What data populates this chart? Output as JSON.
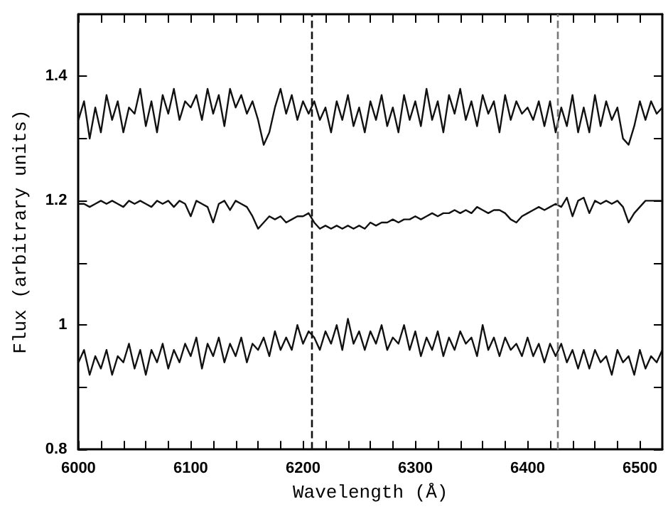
{
  "chart_data": {
    "type": "line",
    "xlabel": "Wavelength (Å)",
    "ylabel": "Flux (arbitrary units)",
    "x": [
      6000,
      6005,
      6010,
      6015,
      6020,
      6025,
      6030,
      6035,
      6040,
      6045,
      6050,
      6055,
      6060,
      6065,
      6070,
      6075,
      6080,
      6085,
      6090,
      6095,
      6100,
      6105,
      6110,
      6115,
      6120,
      6125,
      6130,
      6135,
      6140,
      6145,
      6150,
      6155,
      6160,
      6165,
      6170,
      6175,
      6180,
      6185,
      6190,
      6195,
      6200,
      6205,
      6210,
      6215,
      6220,
      6225,
      6230,
      6235,
      6240,
      6245,
      6250,
      6255,
      6260,
      6265,
      6270,
      6275,
      6280,
      6285,
      6290,
      6295,
      6300,
      6305,
      6310,
      6315,
      6320,
      6325,
      6330,
      6335,
      6340,
      6345,
      6350,
      6355,
      6360,
      6365,
      6370,
      6375,
      6380,
      6385,
      6390,
      6395,
      6400,
      6405,
      6410,
      6415,
      6420,
      6425,
      6430,
      6435,
      6440,
      6445,
      6450,
      6455,
      6460,
      6465,
      6470,
      6475,
      6480,
      6485,
      6490,
      6495,
      6500,
      6505,
      6510,
      6515,
      6520
    ],
    "series": [
      {
        "color": "#111111",
        "values": [
          1.33,
          1.36,
          1.3,
          1.35,
          1.31,
          1.37,
          1.33,
          1.36,
          1.31,
          1.35,
          1.34,
          1.38,
          1.32,
          1.36,
          1.31,
          1.37,
          1.34,
          1.38,
          1.33,
          1.36,
          1.35,
          1.37,
          1.33,
          1.38,
          1.34,
          1.37,
          1.32,
          1.38,
          1.35,
          1.37,
          1.34,
          1.36,
          1.33,
          1.29,
          1.31,
          1.35,
          1.38,
          1.34,
          1.37,
          1.33,
          1.36,
          1.34,
          1.36,
          1.33,
          1.35,
          1.31,
          1.36,
          1.33,
          1.37,
          1.32,
          1.35,
          1.31,
          1.36,
          1.33,
          1.37,
          1.32,
          1.35,
          1.31,
          1.37,
          1.33,
          1.36,
          1.32,
          1.38,
          1.33,
          1.36,
          1.31,
          1.37,
          1.34,
          1.38,
          1.33,
          1.36,
          1.32,
          1.37,
          1.34,
          1.36,
          1.31,
          1.37,
          1.33,
          1.36,
          1.34,
          1.35,
          1.33,
          1.36,
          1.32,
          1.36,
          1.31,
          1.35,
          1.32,
          1.37,
          1.31,
          1.35,
          1.31,
          1.37,
          1.32,
          1.36,
          1.33,
          1.35,
          1.3,
          1.29,
          1.32,
          1.36,
          1.33,
          1.36,
          1.34,
          1.35
        ]
      },
      {
        "color": "#111111",
        "values": [
          1.195,
          1.195,
          1.19,
          1.195,
          1.2,
          1.195,
          1.2,
          1.195,
          1.19,
          1.2,
          1.195,
          1.2,
          1.195,
          1.19,
          1.2,
          1.195,
          1.2,
          1.19,
          1.2,
          1.195,
          1.175,
          1.2,
          1.195,
          1.19,
          1.165,
          1.195,
          1.2,
          1.185,
          1.2,
          1.195,
          1.19,
          1.175,
          1.155,
          1.165,
          1.175,
          1.17,
          1.175,
          1.165,
          1.17,
          1.175,
          1.175,
          1.18,
          1.165,
          1.155,
          1.16,
          1.155,
          1.16,
          1.155,
          1.16,
          1.155,
          1.16,
          1.155,
          1.165,
          1.16,
          1.165,
          1.165,
          1.17,
          1.165,
          1.17,
          1.17,
          1.175,
          1.17,
          1.175,
          1.18,
          1.175,
          1.18,
          1.18,
          1.185,
          1.18,
          1.185,
          1.18,
          1.19,
          1.185,
          1.18,
          1.185,
          1.185,
          1.18,
          1.17,
          1.165,
          1.175,
          1.18,
          1.185,
          1.19,
          1.185,
          1.19,
          1.195,
          1.19,
          1.205,
          1.175,
          1.2,
          1.205,
          1.18,
          1.2,
          1.195,
          1.2,
          1.195,
          1.2,
          1.19,
          1.165,
          1.18,
          1.19,
          1.2,
          1.2,
          1.2,
          1.2
        ]
      },
      {
        "color": "#111111",
        "values": [
          0.94,
          0.96,
          0.92,
          0.95,
          0.93,
          0.96,
          0.92,
          0.95,
          0.94,
          0.97,
          0.93,
          0.96,
          0.92,
          0.96,
          0.94,
          0.97,
          0.93,
          0.96,
          0.94,
          0.97,
          0.95,
          0.98,
          0.93,
          0.97,
          0.95,
          0.98,
          0.94,
          0.97,
          0.95,
          0.98,
          0.94,
          0.97,
          0.96,
          0.98,
          0.95,
          0.99,
          0.96,
          0.98,
          0.96,
          1.0,
          0.97,
          0.99,
          0.98,
          0.96,
          0.99,
          0.97,
          1.0,
          0.96,
          1.01,
          0.97,
          0.99,
          0.96,
          0.99,
          0.97,
          1.0,
          0.96,
          0.98,
          0.97,
          1.0,
          0.96,
          0.99,
          0.95,
          0.98,
          0.96,
          0.99,
          0.95,
          0.98,
          0.96,
          0.99,
          0.97,
          0.98,
          0.95,
          1.0,
          0.96,
          0.98,
          0.95,
          0.98,
          0.96,
          0.97,
          0.95,
          0.98,
          0.95,
          0.97,
          0.94,
          0.97,
          0.95,
          0.97,
          0.94,
          0.96,
          0.93,
          0.96,
          0.93,
          0.96,
          0.94,
          0.95,
          0.92,
          0.96,
          0.94,
          0.95,
          0.92,
          0.96,
          0.93,
          0.95,
          0.94,
          0.96
        ]
      }
    ],
    "xlim": [
      6000,
      6520
    ],
    "xticks": [
      6000,
      {
        "value": 6020,
        "label": null
      },
      {
        "value": 6040,
        "label": null
      },
      {
        "value": 6060,
        "label": null
      },
      {
        "value": 6080,
        "label": null
      },
      6100,
      {
        "value": 6120,
        "label": null
      },
      {
        "value": 6140,
        "label": null
      },
      {
        "value": 6160,
        "label": null
      },
      {
        "value": 6180,
        "label": null
      },
      6200,
      {
        "value": 6220,
        "label": null
      },
      {
        "value": 6240,
        "label": null
      },
      {
        "value": 6260,
        "label": null
      },
      {
        "value": 6280,
        "label": null
      },
      6300,
      {
        "value": 6320,
        "label": null
      },
      {
        "value": 6340,
        "label": null
      },
      {
        "value": 6360,
        "label": null
      },
      {
        "value": 6380,
        "label": null
      },
      6400,
      {
        "value": 6420,
        "label": null
      },
      {
        "value": 6440,
        "label": null
      },
      {
        "value": 6460,
        "label": null
      },
      {
        "value": 6480,
        "label": null
      },
      6500
    ],
    "ylim": [
      0.8,
      1.5
    ],
    "yticks": [
      0.8,
      {
        "value": 0.9,
        "label": null
      },
      1,
      {
        "value": 1.1,
        "label": null
      },
      1.2,
      {
        "value": 1.3,
        "label": null
      },
      1.4
    ],
    "ref_lines": [
      {
        "axis": "x",
        "value": 6208,
        "color": "#111111",
        "line_style": "dashed"
      },
      {
        "axis": "x",
        "value": 6427,
        "color": "#777777",
        "line_style": "dashed"
      }
    ],
    "grid": false,
    "marker": "none",
    "line_style": "solid",
    "legend": false
  }
}
